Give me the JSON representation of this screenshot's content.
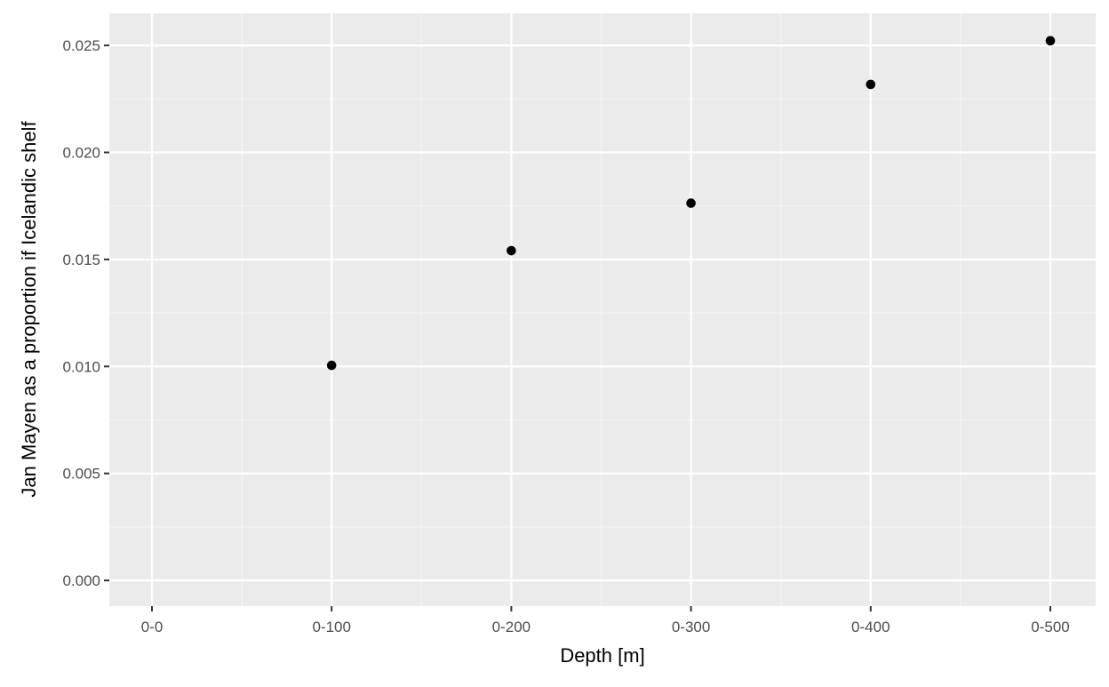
{
  "chart_data": {
    "type": "scatter",
    "title": "",
    "xlabel": "Depth [m]",
    "ylabel": "Jan Mayen as a proportion if Icelandic shelf",
    "categories": [
      "0-0",
      "0-100",
      "0-200",
      "0-300",
      "0-400",
      "0-500"
    ],
    "points": [
      {
        "x": "0-100",
        "y": 0.01005
      },
      {
        "x": "0-200",
        "y": 0.01541
      },
      {
        "x": "0-300",
        "y": 0.01763
      },
      {
        "x": "0-400",
        "y": 0.02318
      },
      {
        "x": "0-500",
        "y": 0.02522
      }
    ],
    "y_ticks": [
      "0.000",
      "0.005",
      "0.010",
      "0.015",
      "0.020",
      "0.025"
    ],
    "y_tick_values": [
      0,
      0.005,
      0.01,
      0.015,
      0.02,
      0.025
    ],
    "ylim": [
      -0.0012,
      0.0265
    ],
    "grid": true,
    "legend": "none",
    "colors": {
      "panel_background": "#ebebeb",
      "grid_major": "#ffffff",
      "grid_minor": "#f5f5f5",
      "point": "#000000",
      "tick_label": "#4d4d4d",
      "tick_mark": "#333333"
    }
  }
}
